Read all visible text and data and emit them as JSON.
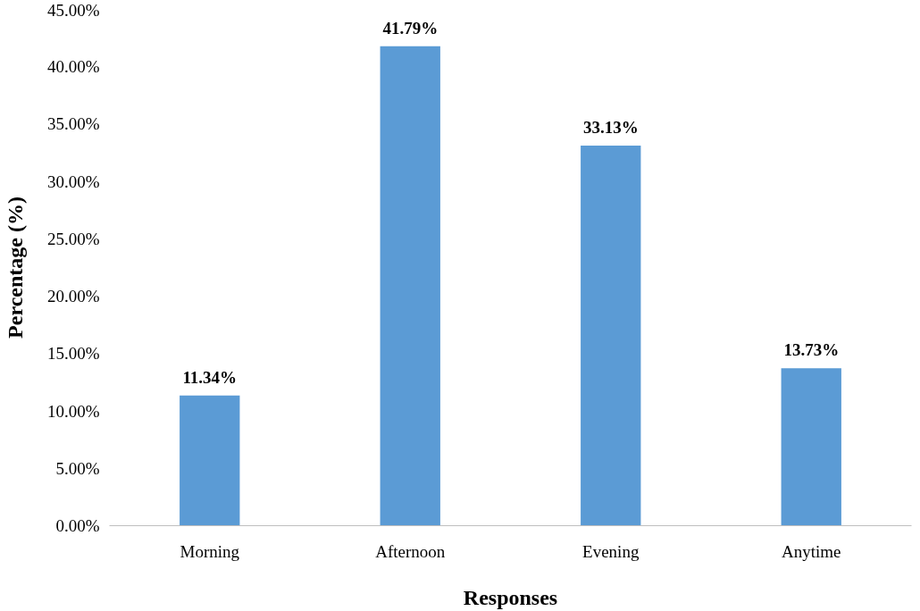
{
  "chart_data": {
    "type": "bar",
    "xlabel": "Responses",
    "ylabel": "Percentage (%)",
    "categories": [
      "Morning",
      "Afternoon",
      "Evening",
      "Anytime"
    ],
    "values": [
      11.34,
      41.79,
      33.13,
      13.73
    ],
    "color": "#5b9bd5",
    "value_labels": [
      "11.34%",
      "41.79%",
      "33.13%",
      "13.73%"
    ],
    "ylim": [
      0,
      45
    ],
    "yticks": [
      {
        "value": 0,
        "label": "0.00%"
      },
      {
        "value": 5,
        "label": "5.00%"
      },
      {
        "value": 10,
        "label": "10.00%"
      },
      {
        "value": 15,
        "label": "15.00%"
      },
      {
        "value": 20,
        "label": "20.00%"
      },
      {
        "value": 25,
        "label": "25.00%"
      },
      {
        "value": 30,
        "label": "30.00%"
      },
      {
        "value": 35,
        "label": "35.00%"
      },
      {
        "value": 40,
        "label": "40.00%"
      },
      {
        "value": 45,
        "label": "45.00%"
      }
    ],
    "grid": false
  }
}
